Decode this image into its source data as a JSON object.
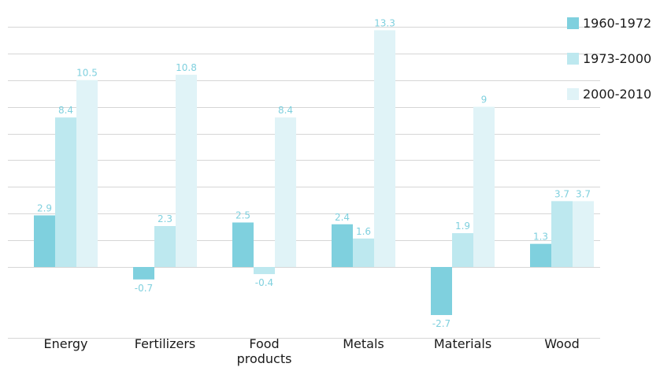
{
  "chart_data": {
    "type": "bar",
    "title": "",
    "xlabel": "",
    "ylabel": "",
    "categories": [
      "Energy",
      "Fertilizers",
      "Food products",
      "Metals",
      "Materials",
      "Wood"
    ],
    "series": [
      {
        "name": "1960-1972",
        "color": "#7fd0de",
        "values": [
          2.9,
          -0.7,
          2.5,
          2.4,
          -2.7,
          1.3
        ]
      },
      {
        "name": "1973-2000",
        "color": "#bde8ef",
        "values": [
          8.4,
          2.3,
          -0.4,
          1.6,
          1.9,
          3.7
        ]
      },
      {
        "name": "2000-2010",
        "color": "#e0f3f7",
        "values": [
          10.5,
          10.8,
          8.4,
          13.3,
          9,
          3.7
        ]
      }
    ],
    "value_labels": [
      [
        "2.9",
        "-0.7",
        "2.5",
        "2.4",
        "-2.7",
        "1.3"
      ],
      [
        "8.4",
        "2.3",
        "-0.4",
        "1.6",
        "1.9",
        "3.7"
      ],
      [
        "10.5",
        "10.8",
        "8.4",
        "13.3",
        "9",
        "3.7"
      ]
    ],
    "ylim": [
      -4,
      13.3
    ],
    "gridlines": [
      -4,
      0,
      1.5,
      3,
      4.5,
      6,
      7.5,
      9,
      10.5,
      12,
      13.5
    ],
    "grid": true,
    "legend_position": "top-right",
    "label_color": "#7fd0de"
  }
}
